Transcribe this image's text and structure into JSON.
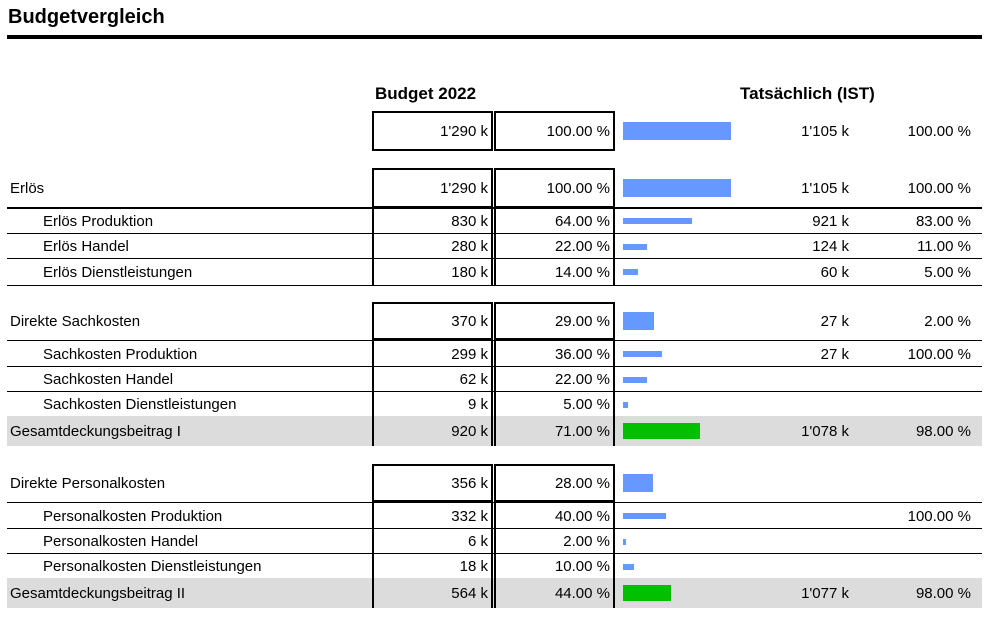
{
  "title": "Budgetvergleich",
  "headers": {
    "budget": "Budget 2022",
    "actual": "Tatsächlich (IST)"
  },
  "colors": {
    "bar_blue": "#6699ff",
    "bar_green": "#00c000",
    "shaded_row": "#dcdcdc"
  },
  "rows": [
    {
      "label": "",
      "budget": "1'290 k",
      "budget_pct": "100.00 %",
      "actual": "1'105 k",
      "actual_pct": "100.00 %",
      "bar_pct": 100
    },
    {
      "label": "Erlös",
      "budget": "1'290 k",
      "budget_pct": "100.00 %",
      "actual": "1'105 k",
      "actual_pct": "100.00 %",
      "bar_pct": 100
    },
    {
      "label": "Erlös Produktion",
      "budget": "830 k",
      "budget_pct": "64.00 %",
      "actual": "921 k",
      "actual_pct": "83.00 %",
      "bar_pct": 64
    },
    {
      "label": "Erlös Handel",
      "budget": "280 k",
      "budget_pct": "22.00 %",
      "actual": "124 k",
      "actual_pct": "11.00 %",
      "bar_pct": 22
    },
    {
      "label": "Erlös Dienstleistungen",
      "budget": "180 k",
      "budget_pct": "14.00 %",
      "actual": "60 k",
      "actual_pct": "5.00 %",
      "bar_pct": 14
    },
    {
      "label": "Direkte Sachkosten",
      "budget": "370 k",
      "budget_pct": "29.00 %",
      "actual": "27 k",
      "actual_pct": "2.00 %",
      "bar_pct": 29
    },
    {
      "label": "Sachkosten Produktion",
      "budget": "299 k",
      "budget_pct": "36.00 %",
      "actual": "27 k",
      "actual_pct": "100.00 %",
      "bar_pct": 36
    },
    {
      "label": "Sachkosten Handel",
      "budget": "62 k",
      "budget_pct": "22.00 %",
      "actual": "",
      "actual_pct": "",
      "bar_pct": 22
    },
    {
      "label": "Sachkosten Dienstleistungen",
      "budget": "9 k",
      "budget_pct": "5.00 %",
      "actual": "",
      "actual_pct": "",
      "bar_pct": 5
    },
    {
      "label": "Gesamtdeckungsbeitrag I",
      "budget": "920 k",
      "budget_pct": "71.00 %",
      "actual": "1'078 k",
      "actual_pct": "98.00 %",
      "bar_pct": 71
    },
    {
      "label": "Direkte Personalkosten",
      "budget": "356 k",
      "budget_pct": "28.00 %",
      "actual": "",
      "actual_pct": "",
      "bar_pct": 28
    },
    {
      "label": "Personalkosten Produktion",
      "budget": "332 k",
      "budget_pct": "40.00 %",
      "actual": "",
      "actual_pct": "100.00 %",
      "bar_pct": 40
    },
    {
      "label": "Personalkosten Handel",
      "budget": "6 k",
      "budget_pct": "2.00 %",
      "actual": "",
      "actual_pct": "",
      "bar_pct": 2
    },
    {
      "label": "Personalkosten Dienstleistungen",
      "budget": "18 k",
      "budget_pct": "10.00 %",
      "actual": "",
      "actual_pct": "",
      "bar_pct": 10
    },
    {
      "label": "Gesamtdeckungsbeitrag II",
      "budget": "564 k",
      "budget_pct": "44.00 %",
      "actual": "1'077 k",
      "actual_pct": "98.00 %",
      "bar_pct": 44
    }
  ]
}
